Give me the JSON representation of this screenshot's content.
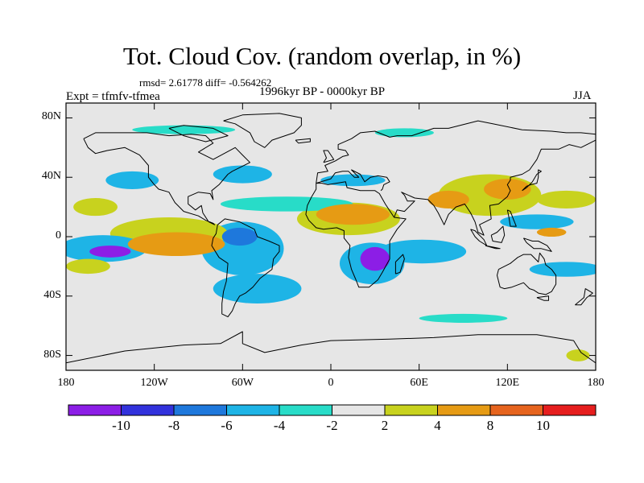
{
  "title": "Tot. Cloud Cov. (random overlap, in %)",
  "stats": "rmsd= 2.61778 diff= -0.564262",
  "period": "1996kyr BP - 0000kyr BP",
  "experiment": "Expt = tfmfv-tfmea",
  "season": "JJA",
  "map": {
    "projection": "cylindrical-equidistant",
    "lon_range": [
      -180,
      180
    ],
    "lat_range": [
      -90,
      90
    ],
    "background": "#e6e6e6",
    "y_ticks": [
      {
        "lat": 80,
        "label": "80N"
      },
      {
        "lat": 40,
        "label": "40N"
      },
      {
        "lat": 0,
        "label": "0"
      },
      {
        "lat": -40,
        "label": "40S"
      },
      {
        "lat": -80,
        "label": "80S"
      }
    ],
    "x_ticks": [
      {
        "lon": -180,
        "label": "180"
      },
      {
        "lon": -120,
        "label": "120W"
      },
      {
        "lon": -60,
        "label": "60W"
      },
      {
        "lon": 0,
        "label": "0"
      },
      {
        "lon": 60,
        "label": "60E"
      },
      {
        "lon": 120,
        "label": "120E"
      },
      {
        "lon": 180,
        "label": "180"
      }
    ]
  },
  "colorbar": {
    "colors": [
      "#8c1ee6",
      "#3232dc",
      "#1e78dc",
      "#1eb4e6",
      "#28dcc8",
      "#e6e6e6",
      "#c8d21e",
      "#e69b14",
      "#e6641e",
      "#e61e1e"
    ],
    "labels": [
      "-10",
      "-8",
      "-6",
      "-4",
      "-2",
      "2",
      "4",
      "8",
      "10"
    ]
  },
  "anomalies": [
    {
      "lon": -150,
      "lat": -10,
      "rx": 14,
      "ry": 4,
      "level": -10
    },
    {
      "lon": -155,
      "lat": -8,
      "rx": 30,
      "ry": 9,
      "level": -4
    },
    {
      "lon": -105,
      "lat": -5,
      "rx": 33,
      "ry": 8,
      "level": 4
    },
    {
      "lon": -110,
      "lat": 2,
      "rx": 40,
      "ry": 11,
      "level": 2
    },
    {
      "lon": -62,
      "lat": 0,
      "rx": 12,
      "ry": 6,
      "level": -6
    },
    {
      "lon": -60,
      "lat": -8,
      "rx": 28,
      "ry": 18,
      "level": -4
    },
    {
      "lon": -50,
      "lat": -35,
      "rx": 30,
      "ry": 10,
      "level": -4
    },
    {
      "lon": -135,
      "lat": 38,
      "rx": 18,
      "ry": 6,
      "level": -4
    },
    {
      "lon": -60,
      "lat": 42,
      "rx": 20,
      "ry": 6,
      "level": -4
    },
    {
      "lon": -30,
      "lat": 22,
      "rx": 45,
      "ry": 5,
      "level": -2
    },
    {
      "lon": -160,
      "lat": 20,
      "rx": 15,
      "ry": 6,
      "level": 2
    },
    {
      "lon": 15,
      "lat": 15,
      "rx": 25,
      "ry": 7,
      "level": 4
    },
    {
      "lon": 12,
      "lat": 12,
      "rx": 35,
      "ry": 11,
      "level": 2
    },
    {
      "lon": 30,
      "lat": -15,
      "rx": 10,
      "ry": 8,
      "level": -10
    },
    {
      "lon": 28,
      "lat": -18,
      "rx": 22,
      "ry": 14,
      "level": -4
    },
    {
      "lon": 15,
      "lat": 38,
      "rx": 22,
      "ry": 4,
      "level": -4
    },
    {
      "lon": 80,
      "lat": 25,
      "rx": 14,
      "ry": 6,
      "level": 4
    },
    {
      "lon": 120,
      "lat": 32,
      "rx": 16,
      "ry": 7,
      "level": 4
    },
    {
      "lon": 108,
      "lat": 28,
      "rx": 35,
      "ry": 14,
      "level": 2
    },
    {
      "lon": 62,
      "lat": -10,
      "rx": 30,
      "ry": 8,
      "level": -4
    },
    {
      "lon": 140,
      "lat": 10,
      "rx": 25,
      "ry": 5,
      "level": -4
    },
    {
      "lon": 150,
      "lat": 3,
      "rx": 10,
      "ry": 3,
      "level": 4
    },
    {
      "lon": 160,
      "lat": 25,
      "rx": 20,
      "ry": 6,
      "level": 2
    },
    {
      "lon": 160,
      "lat": -22,
      "rx": 25,
      "ry": 5,
      "level": -4
    },
    {
      "lon": -165,
      "lat": -20,
      "rx": 15,
      "ry": 5,
      "level": 2
    },
    {
      "lon": 168,
      "lat": -80,
      "rx": 8,
      "ry": 4,
      "level": 2
    },
    {
      "lon": 90,
      "lat": -55,
      "rx": 30,
      "ry": 3,
      "level": -2
    },
    {
      "lon": -100,
      "lat": 72,
      "rx": 35,
      "ry": 3,
      "level": -2
    },
    {
      "lon": 50,
      "lat": 70,
      "rx": 20,
      "ry": 3,
      "level": -2
    }
  ]
}
